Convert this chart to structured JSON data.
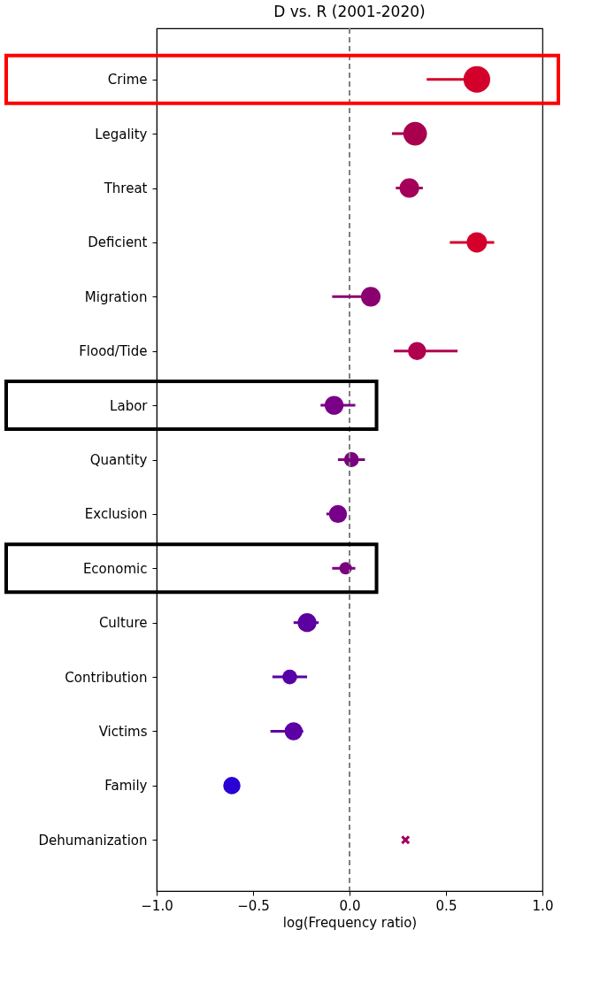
{
  "chart_data": {
    "type": "bubble",
    "orientation": "horizontal",
    "title": "D vs. R (2001-2020)",
    "xlabel": "log(Frequency ratio)",
    "categories": [
      "Crime",
      "Legality",
      "Threat",
      "Deficient",
      "Migration",
      "Flood/Tide",
      "Labor",
      "Quantity",
      "Exclusion",
      "Economic",
      "Culture",
      "Contribution",
      "Victims",
      "Family",
      "Dehumanization"
    ],
    "series": [
      {
        "marker": "circle",
        "values": [
          0.66,
          0.34,
          0.31,
          0.66,
          0.11,
          0.35,
          -0.08,
          0.01,
          -0.06,
          -0.02,
          -0.22,
          -0.31,
          -0.29,
          -0.61,
          null
        ],
        "sizes": [
          1,
          0.78,
          0.54,
          0.58,
          0.54,
          0.46,
          0.5,
          0.31,
          0.46,
          0.22,
          0.5,
          0.31,
          0.46,
          0.42,
          null
        ],
        "errors": [
          [
            0.4,
            0.66
          ],
          [
            0.22,
            0.4
          ],
          [
            0.24,
            0.38
          ],
          [
            0.52,
            0.75
          ],
          [
            -0.09,
            0.11
          ],
          [
            0.23,
            0.56
          ],
          [
            -0.15,
            0.03
          ],
          [
            -0.06,
            0.08
          ],
          [
            -0.12,
            -0.02
          ],
          [
            -0.09,
            0.03
          ],
          [
            -0.29,
            -0.16
          ],
          [
            -0.4,
            -0.22
          ],
          [
            -0.41,
            -0.24
          ],
          null,
          null
        ],
        "colors": [
          "#d4002c",
          "#a8004f",
          "#a4005a",
          "#d4002c",
          "#8a0070",
          "#b0004e",
          "#7a0087",
          "#7a007f",
          "#760088",
          "#7b0080",
          "#5d00a0",
          "#5800a8",
          "#5c00a5",
          "#2a00d4",
          "#a0005a"
        ]
      },
      {
        "marker": "cross",
        "color": "#a0005a",
        "values": [
          null,
          null,
          null,
          null,
          null,
          null,
          null,
          null,
          null,
          null,
          null,
          null,
          null,
          null,
          0.29
        ]
      }
    ],
    "xlim": [
      -1,
      1
    ],
    "xticks": [
      {
        "value": -1,
        "label": "−1.0"
      },
      {
        "value": -0.5,
        "label": "−0.5"
      },
      {
        "value": 0,
        "label": "0.0"
      },
      {
        "value": 0.5,
        "label": "0.5"
      },
      {
        "value": 1,
        "label": "1.0"
      }
    ],
    "ref_lines": [
      {
        "axis": "x",
        "value": 0,
        "color": "#808080",
        "line_style": "dashed"
      }
    ],
    "grid": false
  }
}
